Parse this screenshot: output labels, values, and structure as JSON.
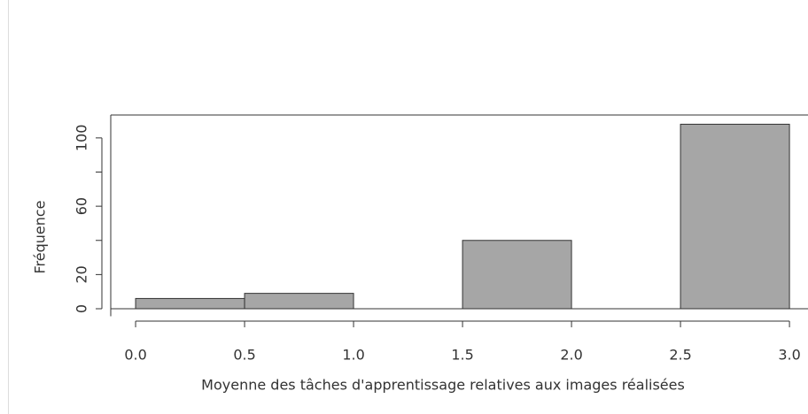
{
  "chart_data": {
    "type": "histogram",
    "xlabel": "Moyenne des tâches d'apprentissage relatives aux images réalisées",
    "ylabel": "Fréquence",
    "bins": [
      0,
      0.5,
      1.0,
      1.5,
      2.0,
      2.5,
      3.0
    ],
    "values": [
      6,
      9,
      0,
      40,
      0,
      108
    ],
    "color": "#a6a6a6",
    "xlim": [
      -0.114,
      3.085
    ],
    "ylim": [
      -4.4,
      113.4
    ],
    "xticks": [
      {
        "value": 0,
        "label": "0.0"
      },
      0.5,
      {
        "value": 1,
        "label": "1.0"
      },
      1.5,
      {
        "value": 2,
        "label": "2.0"
      },
      2.5,
      {
        "value": 3,
        "label": "3.0"
      }
    ],
    "yticks": [
      0,
      20,
      60,
      100
    ],
    "ytick_marks": [
      0,
      20,
      40,
      60,
      80,
      100
    ]
  }
}
